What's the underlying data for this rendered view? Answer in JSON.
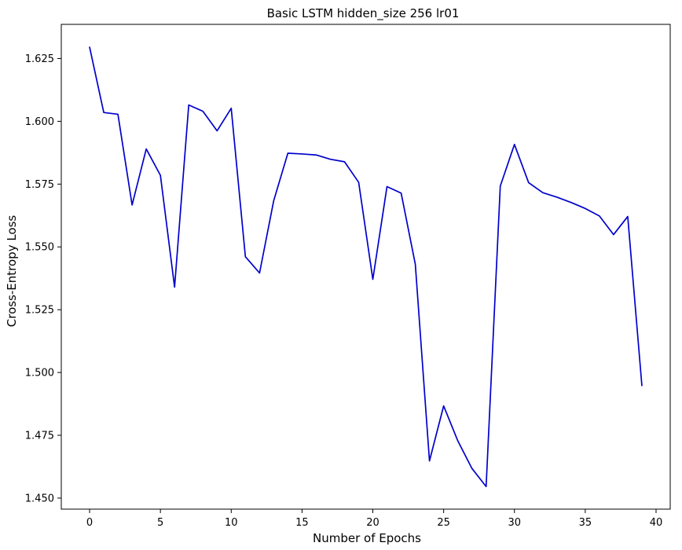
{
  "chart_data": {
    "type": "line",
    "title": "Basic LSTM hidden_size 256 lr01",
    "xlabel": "Number of Epochs",
    "ylabel": "Cross-Entropy Loss",
    "xlim": [
      -2,
      41
    ],
    "ylim": [
      1.4456,
      1.6386
    ],
    "xticks": [
      0,
      5,
      10,
      15,
      20,
      25,
      30,
      35,
      40
    ],
    "xtick_labels": [
      "0",
      "5",
      "10",
      "15",
      "20",
      "25",
      "30",
      "35",
      "40"
    ],
    "yticks": [
      1.45,
      1.475,
      1.5,
      1.525,
      1.55,
      1.575,
      1.6,
      1.625
    ],
    "ytick_labels": [
      "1.450",
      "1.475",
      "1.500",
      "1.525",
      "1.550",
      "1.575",
      "1.600",
      "1.625"
    ],
    "grid": false,
    "series": [
      {
        "color": "#0000cc",
        "x": [
          0,
          1,
          2,
          3,
          4,
          5,
          6,
          7,
          8,
          9,
          10,
          11,
          12,
          13,
          14,
          15,
          16,
          17,
          18,
          19,
          20,
          21,
          22,
          23,
          24,
          25,
          26,
          27,
          28,
          29,
          30,
          31,
          32,
          33,
          34,
          35,
          36,
          37,
          38,
          39
        ],
        "values": [
          1.6295,
          1.6035,
          1.6028,
          1.5667,
          1.589,
          1.5785,
          1.534,
          1.6065,
          1.604,
          1.5962,
          1.6052,
          1.5461,
          1.5396,
          1.5684,
          1.5873,
          1.587,
          1.5866,
          1.5849,
          1.5839,
          1.5757,
          1.5371,
          1.574,
          1.5714,
          1.5431,
          1.4648,
          1.4867,
          1.4728,
          1.4618,
          1.4546,
          1.5742,
          1.5908,
          1.5756,
          1.5716,
          1.5698,
          1.5677,
          1.5653,
          1.5623,
          1.5549,
          1.5621,
          1.4948
        ]
      }
    ]
  }
}
